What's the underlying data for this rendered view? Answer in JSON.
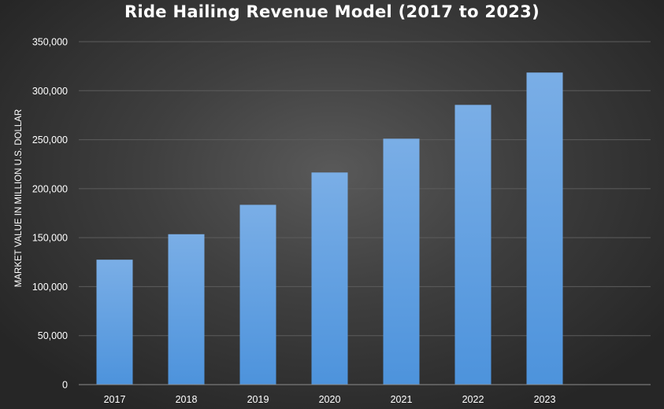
{
  "chart_data": {
    "type": "bar",
    "title": "Ride Hailing Revenue Model (2017 to 2023)",
    "xlabel": "",
    "ylabel": "MARKET VALUE IN MILLION U.S. DOLLAR",
    "categories": [
      "2017",
      "2018",
      "2019",
      "2020",
      "2021",
      "2022",
      "2023"
    ],
    "series": [
      {
        "values": [
          127500,
          153500,
          183500,
          216500,
          251000,
          285500,
          318500
        ]
      }
    ],
    "ylim": [
      0,
      350000
    ],
    "yticks": [
      0,
      50000,
      100000,
      150000,
      200000,
      250000,
      300000,
      350000
    ],
    "ytick_labels": [
      "0",
      "50,000",
      "100,000",
      "150,000",
      "200,000",
      "250,000",
      "300,000",
      "350,000"
    ],
    "grid": true,
    "legend": "none",
    "colors": {
      "bar_light": "#7aaee6",
      "bar_dark": "#4d93dc",
      "gridline": "#5c5c5c",
      "axis_line": "#8c8c8c",
      "text": "#ffffff",
      "background_center": "#595959",
      "background_edge": "#262626"
    }
  }
}
